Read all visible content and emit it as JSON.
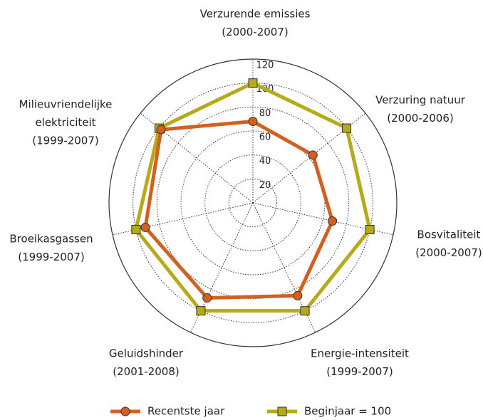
{
  "chart_data": {
    "type": "radar",
    "categories": [
      [
        "Verzurende emissies",
        "(2000-2007)"
      ],
      [
        "Verzuring natuur",
        "(2000-2006)"
      ],
      [
        "Bosvitaliteit",
        "(2000-2007)"
      ],
      [
        "Energie-intensiteit",
        "(1999-2007)"
      ],
      [
        "Geluidshinder",
        "(2001-2008)"
      ],
      [
        "Broeikasgassen",
        "(1999-2007)"
      ],
      [
        "Milieuvriendelijke",
        "elektriciteit",
        "(1999-2007)"
      ]
    ],
    "series": [
      {
        "name": "Recentste jaar",
        "color": "#d2601e",
        "marker": "circle",
        "values": [
          68,
          64,
          68,
          86,
          88,
          92,
          98
        ]
      },
      {
        "name": "Beginjaar = 100",
        "color": "#b5aa18",
        "marker": "square",
        "values": [
          100,
          100,
          100,
          100,
          100,
          100,
          100
        ]
      }
    ],
    "ylim": [
      0,
      120
    ],
    "yticks": [
      20,
      40,
      60,
      80,
      100,
      120
    ],
    "grid": true,
    "legend": "bottom"
  }
}
